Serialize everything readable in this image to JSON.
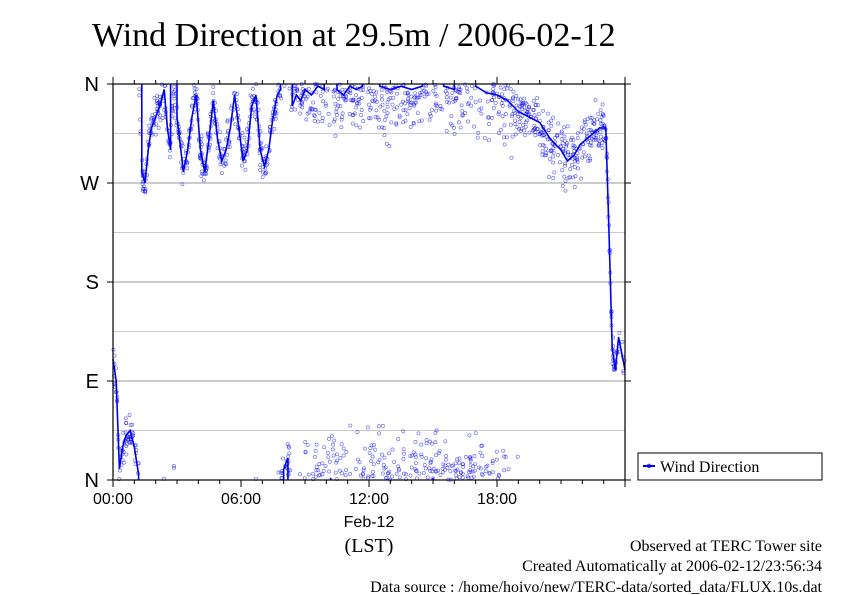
{
  "chart_data": {
    "type": "scatter",
    "title": "Wind Direction at 29.5m / 2006-02-12",
    "xlabel_date": "Feb-12",
    "xlabel_unit": "(LST)",
    "x_ticks": [
      "00:00",
      "06:00",
      "12:00",
      "18:00"
    ],
    "x_tick_hours": [
      0,
      6,
      12,
      18
    ],
    "xlim_hours": [
      0,
      24
    ],
    "ylim_degrees": [
      0,
      360
    ],
    "y_ticks": [
      {
        "deg": 0,
        "label": "N"
      },
      {
        "deg": 90,
        "label": "E"
      },
      {
        "deg": 180,
        "label": "S"
      },
      {
        "deg": 270,
        "label": "W"
      },
      {
        "deg": 360,
        "label": "N"
      }
    ],
    "minor_y_gridlines_deg": [
      45,
      135,
      225,
      315
    ],
    "grid": true,
    "legend": {
      "position": "bottom-right-outside",
      "label": "Wind Direction"
    },
    "series_color": "#0000ee",
    "series": [
      {
        "name": "Wind Direction",
        "line_x_hours": [
          0.0,
          0.15,
          0.3,
          0.45,
          0.6,
          0.8,
          1.0,
          1.2,
          1.35,
          1.5,
          1.65,
          1.8,
          2.0,
          2.2,
          2.4,
          2.55,
          2.7,
          2.85,
          3.0,
          3.15,
          3.3,
          3.5,
          3.7,
          3.9,
          4.1,
          4.3,
          4.5,
          4.7,
          4.9,
          5.1,
          5.3,
          5.5,
          5.7,
          5.9,
          6.1,
          6.3,
          6.5,
          6.7,
          6.9,
          7.1,
          7.3,
          7.5,
          7.7,
          7.85,
          8.0,
          8.2,
          8.4,
          8.6,
          8.8,
          9.0,
          9.3,
          9.6,
          9.9,
          10.2,
          10.5,
          10.8,
          11.1,
          11.4,
          11.7,
          12.0,
          12.5,
          13.0,
          13.5,
          14.0,
          14.5,
          15.0,
          15.5,
          16.0,
          16.5,
          17.0,
          17.5,
          18.0,
          18.5,
          19.0,
          19.5,
          20.0,
          20.5,
          21.0,
          21.3,
          21.6,
          21.9,
          22.2,
          22.5,
          22.8,
          23.1,
          23.25,
          23.4,
          23.55,
          23.7,
          23.85,
          24.0
        ],
        "line_y_deg": [
          110,
          90,
          10,
          30,
          40,
          45,
          30,
          5,
          280,
          270,
          300,
          320,
          330,
          340,
          355,
          320,
          300,
          0,
          330,
          305,
          280,
          300,
          330,
          350,
          300,
          280,
          310,
          345,
          310,
          290,
          300,
          320,
          350,
          320,
          290,
          300,
          340,
          350,
          300,
          285,
          300,
          330,
          350,
          355,
          10,
          20,
          340,
          350,
          345,
          355,
          350,
          358,
          355,
          2,
          355,
          350,
          358,
          355,
          358,
          0,
          358,
          355,
          358,
          355,
          358,
          2,
          358,
          355,
          0,
          358,
          352,
          350,
          345,
          335,
          330,
          325,
          310,
          300,
          290,
          295,
          305,
          310,
          315,
          320,
          320,
          225,
          120,
          100,
          130,
          115,
          100
        ]
      }
    ]
  },
  "footer": {
    "line1": "Observed at TERC Tower site",
    "line2": "Created Automatically at 2006-02-12/23:56:34",
    "line3": "Data source : /home/hoivo/new/TERC-data/sorted_data/FLUX.10s.dat"
  }
}
